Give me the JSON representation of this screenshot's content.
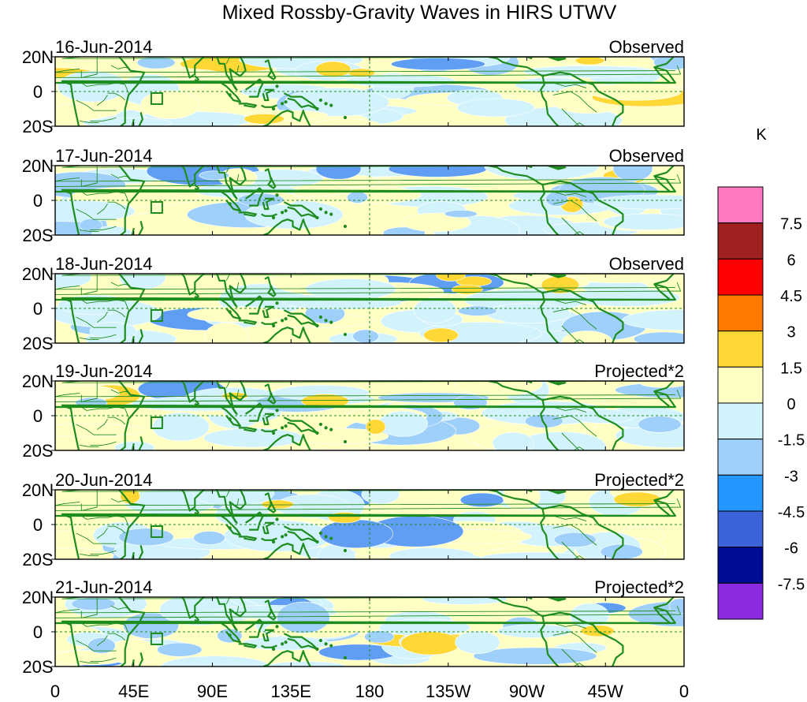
{
  "title": "Mixed Rossby-Gravity Waves in HIRS UTWV",
  "lat_labels": [
    "20N",
    "0",
    "20S"
  ],
  "lon_labels": [
    "0",
    "45E",
    "90E",
    "135E",
    "180",
    "135W",
    "90W",
    "45W",
    "0"
  ],
  "panels": [
    {
      "date": "16-Jun-2014",
      "label": "Observed"
    },
    {
      "date": "17-Jun-2014",
      "label": "Observed"
    },
    {
      "date": "18-Jun-2014",
      "label": "Observed"
    },
    {
      "date": "19-Jun-2014",
      "label": "Projected*2"
    },
    {
      "date": "20-Jun-2014",
      "label": "Projected*2"
    },
    {
      "date": "21-Jun-2014",
      "label": "Projected*2"
    }
  ],
  "colorbar": {
    "units": "K",
    "levels": [
      "7.5",
      "6",
      "4.5",
      "3",
      "1.5",
      "0",
      "-1.5",
      "-3",
      "-4.5",
      "-6",
      "-7.5"
    ],
    "colors": [
      "#ff79c0",
      "#a02020",
      "#ff0000",
      "#ff7a00",
      "#ffd836",
      "#ffffc4",
      "#d2f3fc",
      "#9fd0fa",
      "#2595ff",
      "#3c63d8",
      "#000c96",
      "#8a2be2"
    ]
  },
  "map_colors": {
    "coast": "#1e8c1e",
    "pos1": "#ffffc4",
    "pos2": "#ffd836",
    "neg1": "#d2f3fc",
    "neg2": "#9fd0fa",
    "neg3": "#5f9ef2"
  }
}
